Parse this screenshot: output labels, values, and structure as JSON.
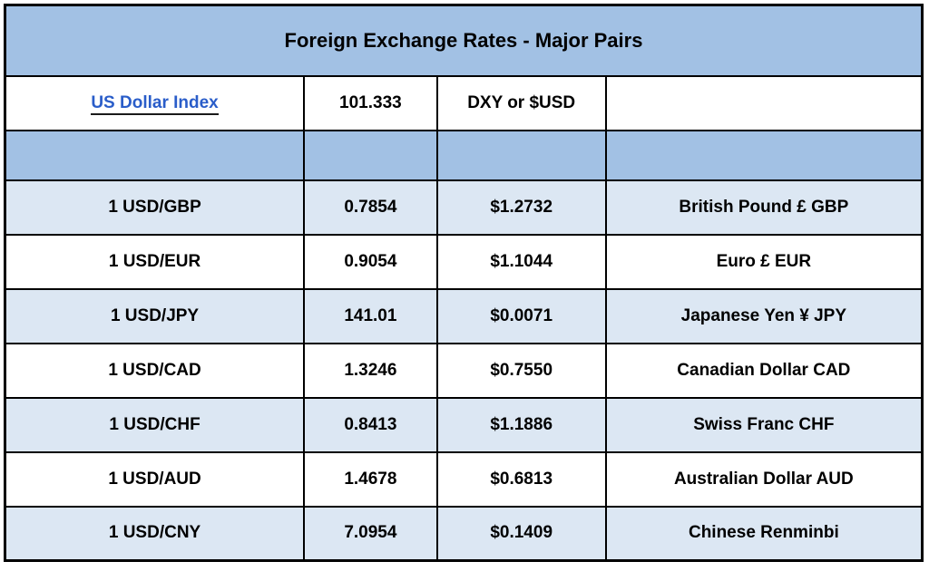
{
  "chart_data": {
    "type": "table",
    "title": "Foreign Exchange Rates - Major Pairs",
    "index_row": {
      "label": "US Dollar Index",
      "value": "101.333",
      "symbol": "DXY or $USD",
      "note": ""
    },
    "columns": [
      "pair",
      "rate_per_usd",
      "usd_value",
      "currency_name"
    ],
    "rows": [
      {
        "pair": "1 USD/GBP",
        "rate": "0.7854",
        "usd_value": "$1.2732",
        "currency": "British Pound £ GBP"
      },
      {
        "pair": "1 USD/EUR",
        "rate": "0.9054",
        "usd_value": "$1.1044",
        "currency": "Euro £ EUR"
      },
      {
        "pair": "1 USD/JPY",
        "rate": "141.01",
        "usd_value": "$0.0071",
        "currency": "Japanese Yen ¥ JPY"
      },
      {
        "pair": "1 USD/CAD",
        "rate": "1.3246",
        "usd_value": "$0.7550",
        "currency": "Canadian Dollar CAD"
      },
      {
        "pair": "1 USD/CHF",
        "rate": "0.8413",
        "usd_value": "$1.1886",
        "currency": "Swiss Franc CHF"
      },
      {
        "pair": "1 USD/AUD",
        "rate": "1.4678",
        "usd_value": "$0.6813",
        "currency": "Australian Dollar AUD"
      },
      {
        "pair": "1 USD/CNY",
        "rate": "7.0954",
        "usd_value": "$0.1409",
        "currency": "Chinese Renminbi"
      }
    ],
    "layout": {
      "column_width_pct": [
        32.6,
        14.5,
        18.4,
        34.5
      ],
      "grid": "on",
      "alternating_rows": "blue-white starting blue"
    }
  },
  "colors": {
    "header_bg": "#a2c1e4",
    "alt_row_bg": "#dce7f3",
    "plain_row_bg": "#ffffff",
    "border": "#000000",
    "link": "#2a5dc9",
    "text": "#000000"
  }
}
